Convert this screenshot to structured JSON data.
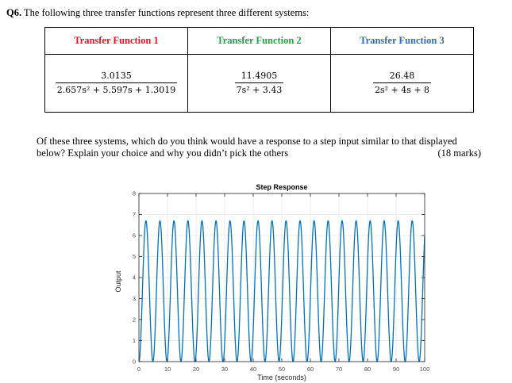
{
  "question": {
    "number": "Q6.",
    "text": " The following three transfer functions represent three different systems:"
  },
  "table": {
    "headers": [
      {
        "label": "Transfer Function 1",
        "color": "#e8141b"
      },
      {
        "label": "Transfer Function 2",
        "color": "#1aa34a"
      },
      {
        "label": "Transfer Function 3",
        "color": "#2f6db3"
      }
    ],
    "functions": [
      {
        "numerator": "3.0135",
        "denominator": "2.657s² + 5.597s + 1.3019"
      },
      {
        "numerator": "11.4905",
        "denominator": "7s² + 3.43"
      },
      {
        "numerator": "26.48",
        "denominator": "2s² + 4s + 8"
      }
    ]
  },
  "prompt": {
    "text": "Of these three systems, which do you think would have a response to a step input similar to that displayed below? Explain your choice and why you didn’t pick the others",
    "marks": "(18 marks)"
  },
  "chart_data": {
    "type": "line",
    "title": "Step Response",
    "xlabel": "Time (seconds)",
    "ylabel": "Output",
    "xlim": [
      0,
      100
    ],
    "ylim": [
      0,
      8
    ],
    "xticks": [
      "0",
      "10",
      "20",
      "30",
      "40",
      "50",
      "60",
      "70",
      "80",
      "90",
      "100"
    ],
    "yticks": [
      "0",
      "1",
      "2",
      "3",
      "4",
      "5",
      "6",
      "7",
      "8"
    ],
    "series_color": "#0072bd",
    "grid": true,
    "series": [
      {
        "description": "undamped oscillation between 0 and 6.7",
        "function": "y = 3.35 * (1 - cos(1.2812 * t))",
        "min": 0,
        "max": 6.7,
        "period": 4.904,
        "peaks": 20
      }
    ]
  }
}
